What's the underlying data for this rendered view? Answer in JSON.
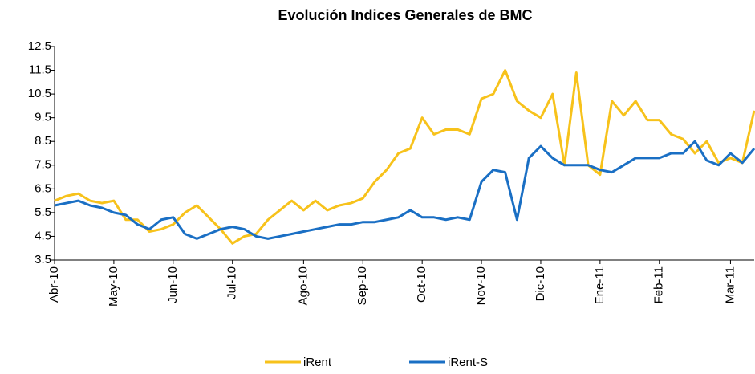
{
  "chart_data": {
    "type": "line",
    "title": "Evolución Indices Generales de BMC",
    "categories": [
      "Abr-10",
      null,
      null,
      null,
      null,
      "May-10",
      null,
      null,
      null,
      null,
      "Jun-10",
      null,
      null,
      null,
      null,
      "Jul-10",
      null,
      null,
      null,
      null,
      null,
      "Ago-10",
      null,
      null,
      null,
      null,
      "Sep-10",
      null,
      null,
      null,
      null,
      "Oct-10",
      null,
      null,
      null,
      null,
      "Nov-10",
      null,
      null,
      null,
      null,
      "Dic-10",
      null,
      null,
      null,
      null,
      "Ene-11",
      null,
      null,
      null,
      null,
      "Feb-11",
      null,
      null,
      null,
      null,
      null,
      "Mar-11",
      null,
      null
    ],
    "series": [
      {
        "name": "iRent",
        "color": "#f7c21b",
        "values": [
          6.0,
          6.2,
          6.3,
          6.0,
          5.9,
          6.0,
          5.2,
          5.2,
          4.7,
          4.8,
          5.0,
          5.5,
          5.8,
          5.3,
          4.8,
          4.2,
          4.5,
          4.6,
          5.2,
          5.6,
          6.0,
          5.6,
          6.0,
          5.6,
          5.8,
          5.9,
          6.1,
          6.8,
          7.3,
          8.0,
          8.2,
          9.5,
          8.8,
          9.0,
          9.0,
          8.8,
          10.3,
          10.5,
          11.5,
          10.2,
          9.8,
          9.5,
          10.5,
          7.5,
          11.4,
          7.5,
          7.1,
          10.2,
          9.6,
          10.2,
          9.4,
          9.4,
          8.8,
          8.6,
          8.0,
          8.5,
          7.6,
          7.8,
          7.6,
          9.8
        ]
      },
      {
        "name": "iRent-S",
        "color": "#1a6fc4",
        "values": [
          5.8,
          5.9,
          6.0,
          5.8,
          5.7,
          5.5,
          5.4,
          5.0,
          4.8,
          5.2,
          5.3,
          4.6,
          4.4,
          4.6,
          4.8,
          4.9,
          4.8,
          4.5,
          4.4,
          4.5,
          4.6,
          4.7,
          4.8,
          4.9,
          5.0,
          5.0,
          5.1,
          5.1,
          5.2,
          5.3,
          5.6,
          5.3,
          5.3,
          5.2,
          5.3,
          5.2,
          6.8,
          7.3,
          7.2,
          5.2,
          7.8,
          8.3,
          7.8,
          7.5,
          7.5,
          7.5,
          7.3,
          7.2,
          7.5,
          7.8,
          7.8,
          7.8,
          8.0,
          8.0,
          8.5,
          7.7,
          7.5,
          8.0,
          7.6,
          8.2
        ]
      }
    ],
    "ylim": [
      3.5,
      12.5
    ],
    "yticks": [
      3.5,
      4.5,
      5.5,
      6.5,
      7.5,
      8.5,
      9.5,
      10.5,
      11.5,
      12.5
    ],
    "legend": "bottom"
  }
}
